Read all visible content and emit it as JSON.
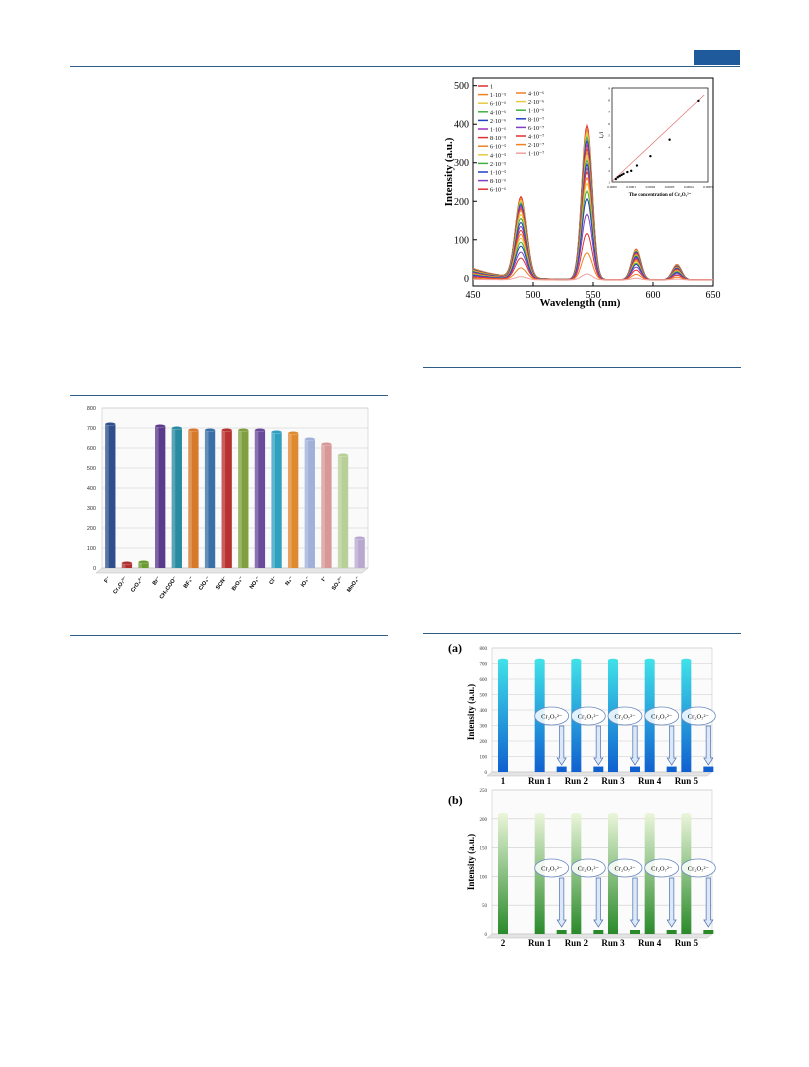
{
  "page": {
    "header_tab_color": "#1f5a9c",
    "rule_color": "#2e5d86"
  },
  "chart_data": [
    {
      "type": "line",
      "xlabel": "Wavelength (nm)",
      "ylabel": "Intensity (a.u.)",
      "xlim": [
        450,
        650
      ],
      "ylim": [
        -20,
        520
      ],
      "xticks": [
        "450",
        "500",
        "550",
        "600",
        "650"
      ],
      "yticks": [
        "0",
        "100",
        "200",
        "300",
        "400",
        "500"
      ],
      "legend_placement": "top-left",
      "peaks_nm": [
        490,
        545,
        586,
        620
      ],
      "series": [
        {
          "name": "1",
          "color": "#e03030",
          "peaks": [
            210,
            400,
            80,
            40
          ]
        },
        {
          "name": "1·10⁻⁵",
          "color": "#f08020",
          "peaks": [
            205,
            390,
            78,
            39
          ]
        },
        {
          "name": "6·10⁻⁶",
          "color": "#e8c840",
          "peaks": [
            200,
            380,
            76,
            38
          ]
        },
        {
          "name": "4·10⁻⁶",
          "color": "#40b040",
          "peaks": [
            195,
            370,
            74,
            37
          ]
        },
        {
          "name": "2·10⁻⁶",
          "color": "#2040c0",
          "peaks": [
            190,
            360,
            72,
            36
          ]
        },
        {
          "name": "1·10⁻⁶",
          "color": "#a030c0",
          "peaks": [
            185,
            350,
            70,
            35
          ]
        },
        {
          "name": "8·10⁻⁵",
          "color": "#e03030",
          "peaks": [
            180,
            340,
            68,
            34
          ]
        },
        {
          "name": "6·10⁻⁵",
          "color": "#f08020",
          "peaks": [
            175,
            330,
            66,
            33
          ]
        },
        {
          "name": "4·10⁻⁵",
          "color": "#e8c840",
          "peaks": [
            165,
            320,
            64,
            32
          ]
        },
        {
          "name": "2·10⁻⁵",
          "color": "#40b040",
          "peaks": [
            155,
            310,
            62,
            31
          ]
        },
        {
          "name": "1·10⁻⁵",
          "color": "#2040c0",
          "peaks": [
            145,
            300,
            60,
            30
          ]
        },
        {
          "name": "8·10⁻⁶",
          "color": "#8040c0",
          "peaks": [
            135,
            290,
            57,
            28
          ]
        },
        {
          "name": "6·10⁻⁶",
          "color": "#e03030",
          "peaks": [
            125,
            280,
            54,
            27
          ]
        },
        {
          "name": "4·10⁻⁶",
          "color": "#f08020",
          "peaks": [
            115,
            265,
            50,
            25
          ]
        },
        {
          "name": "2·10⁻⁶",
          "color": "#e8c840",
          "peaks": [
            105,
            250,
            47,
            23
          ]
        },
        {
          "name": "1·10⁻⁶",
          "color": "#40b040",
          "peaks": [
            95,
            230,
            43,
            21
          ]
        },
        {
          "name": "8·10⁻⁷",
          "color": "#2040c0",
          "peaks": [
            85,
            210,
            40,
            19
          ]
        },
        {
          "name": "6·10⁻⁷",
          "color": "#8040c0",
          "peaks": [
            70,
            170,
            33,
            16
          ]
        },
        {
          "name": "4·10⁻⁷",
          "color": "#e03030",
          "peaks": [
            55,
            120,
            25,
            12
          ]
        },
        {
          "name": "2·10⁻⁷",
          "color": "#f08020",
          "peaks": [
            30,
            70,
            14,
            7
          ]
        },
        {
          "name": "1·10⁻⁷",
          "color": "#f0a0a0",
          "peaks": [
            8,
            15,
            4,
            2
          ]
        }
      ],
      "inset": {
        "xlabel": "The concentration of Cr₂O₇²⁻",
        "ylabel": "I₀/I",
        "xticks": [
          "0.0000",
          "0.0001",
          "0.0002",
          "0.0003",
          "0.0004",
          "0.0005"
        ],
        "yticks": [
          "1",
          "2",
          "3",
          "4",
          "5",
          "6",
          "7",
          "8",
          "9"
        ],
        "xlim": [
          0,
          0.0005
        ],
        "ylim": [
          1,
          9
        ],
        "points": [
          [
            2e-05,
            1.25
          ],
          [
            3e-05,
            1.4
          ],
          [
            4e-05,
            1.5
          ],
          [
            5e-05,
            1.6
          ],
          [
            6e-05,
            1.7
          ],
          [
            8e-05,
            1.85
          ],
          [
            0.0001,
            1.95
          ],
          [
            0.00013,
            2.4
          ],
          [
            0.0002,
            3.2
          ],
          [
            0.0003,
            4.6
          ],
          [
            0.00045,
            7.9
          ]
        ]
      }
    },
    {
      "type": "bar",
      "ylim": [
        0,
        800
      ],
      "yticks": [
        "0",
        "100",
        "200",
        "300",
        "400",
        "500",
        "600",
        "700",
        "800"
      ],
      "categories": [
        "F⁻",
        "Cr₂O₇²⁻",
        "CrO₄²⁻",
        "Br⁻",
        "CH₃COO⁻",
        "BF₄⁻",
        "ClO₄⁻",
        "SCN⁻",
        "BrO₃⁻",
        "NO₃⁻",
        "Cl⁻",
        "N₃⁻",
        "IO₃⁻",
        "I⁻",
        "SO₄²⁻",
        "MnO₄⁻"
      ],
      "values": [
        720,
        25,
        30,
        710,
        700,
        690,
        690,
        690,
        690,
        690,
        680,
        675,
        645,
        620,
        565,
        150
      ],
      "colors": [
        "#2f4f8c",
        "#b03030",
        "#6a9a30",
        "#5a3a8a",
        "#2a8aa0",
        "#d8782a",
        "#3a70a8",
        "#b83030",
        "#80a040",
        "#6a4a9a",
        "#30a0c0",
        "#e08a30",
        "#a0b0d8",
        "#d89898",
        "#b8d098",
        "#b8a8d0"
      ]
    },
    {
      "type": "bar",
      "panel_label": "(a)",
      "ylabel": "Intensity (a.u.)",
      "ylim": [
        0,
        800
      ],
      "yticks": [
        "0",
        "100",
        "200",
        "300",
        "400",
        "500",
        "600",
        "700",
        "800"
      ],
      "categories": [
        "1",
        "Run 1",
        "Run 2",
        "Run 3",
        "Run 4",
        "Run 5"
      ],
      "values": [
        720,
        720,
        720,
        720,
        720,
        720
      ],
      "quenched_values": [
        35,
        35,
        35,
        35,
        35
      ],
      "annotation": "Cr₂O₇²⁻",
      "color": "#2bc0d8"
    },
    {
      "type": "bar",
      "panel_label": "(b)",
      "ylabel": "Intensity (a.u.)",
      "ylim": [
        0,
        250
      ],
      "yticks": [
        "0",
        "50",
        "100",
        "150",
        "200",
        "250"
      ],
      "categories": [
        "2",
        "Run 1",
        "Run 2",
        "Run 3",
        "Run 4",
        "Run 5"
      ],
      "values": [
        207,
        207,
        207,
        207,
        207,
        207
      ],
      "quenched_values": [
        4,
        4,
        4,
        4,
        4
      ],
      "annotation": "Cr₂O₇²⁻",
      "color": "#7bc043"
    }
  ]
}
